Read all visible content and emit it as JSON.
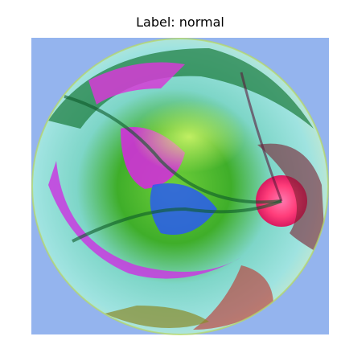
{
  "title": "Label: normal"
}
